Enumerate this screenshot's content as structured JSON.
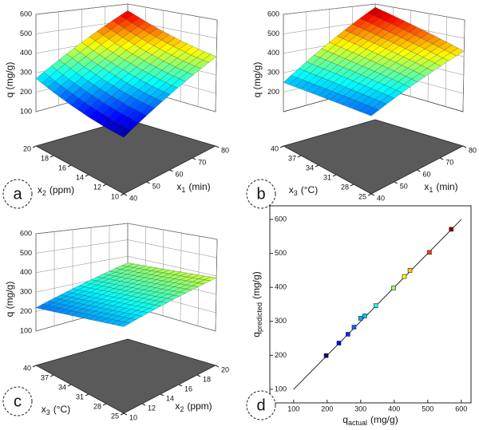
{
  "chart_data": [
    {
      "type": "surface3d",
      "panel_label": "a",
      "colormap": "jet",
      "z_label": "q (mg/g)",
      "x_label": {
        "text": "x",
        "sub": "1",
        "unit": "(min)"
      },
      "y_label": {
        "text": "x",
        "sub": "2",
        "unit": "(ppm)"
      },
      "xlim": [
        40,
        80
      ],
      "xticks": [
        40,
        50,
        60,
        70,
        80
      ],
      "ylim": [
        10,
        20
      ],
      "yticks": [
        10,
        12,
        14,
        16,
        18,
        20
      ],
      "zlim": [
        100,
        600
      ],
      "zticks": [
        100,
        200,
        300,
        400,
        500,
        600
      ],
      "z": [
        [
          110,
          183,
          255,
          328,
          400
        ],
        [
          129,
          202,
          274,
          347,
          419
        ],
        [
          155,
          228,
          300,
          373,
          445
        ],
        [
          187,
          260,
          332,
          405,
          477
        ],
        [
          225,
          298,
          370,
          443,
          515
        ],
        [
          270,
          343,
          415,
          488,
          560
        ]
      ]
    },
    {
      "type": "surface3d",
      "panel_label": "b",
      "colormap": "jet",
      "z_label": "q (mg/g)",
      "x_label": {
        "text": "x",
        "sub": "1",
        "unit": "(min)"
      },
      "y_label": {
        "text": "x",
        "sub": "3",
        "unit": "(°C)"
      },
      "xlim": [
        40,
        80
      ],
      "xticks": [
        40,
        50,
        60,
        70,
        80
      ],
      "ylim": [
        25,
        40
      ],
      "yticks": [
        25,
        28,
        31,
        34,
        37,
        40
      ],
      "zlim": [
        100,
        600
      ],
      "zticks": [
        200,
        300,
        400,
        500,
        600
      ],
      "z": [
        [
          210,
          265,
          320,
          375,
          430
        ],
        [
          218,
          279,
          339,
          400,
          460
        ],
        [
          226,
          292,
          358,
          424,
          490
        ],
        [
          234,
          306,
          377,
          449,
          520
        ],
        [
          242,
          319,
          396,
          473,
          550
        ],
        [
          250,
          333,
          415,
          498,
          580
        ]
      ]
    },
    {
      "type": "surface3d",
      "panel_label": "c",
      "colormap": "jet",
      "z_label": "q (mg/g)",
      "x_label": {
        "text": "x",
        "sub": "2",
        "unit": "(ppm)"
      },
      "y_label": {
        "text": "x",
        "sub": "3",
        "unit": "(°C)"
      },
      "xlim": [
        10,
        20
      ],
      "xticks": [
        10,
        12,
        14,
        16,
        18,
        20
      ],
      "ylim": [
        25,
        40
      ],
      "yticks": [
        25,
        28,
        31,
        34,
        37,
        40
      ],
      "zlim": [
        100,
        600
      ],
      "zticks": [
        100,
        200,
        300,
        400,
        500,
        600
      ],
      "z": [
        [
          250,
          278,
          306,
          334,
          362,
          390
        ],
        [
          244,
          272,
          300,
          328,
          356,
          384
        ],
        [
          238,
          266,
          294,
          322,
          350,
          378
        ],
        [
          232,
          260,
          288,
          316,
          344,
          372
        ],
        [
          226,
          254,
          282,
          310,
          338,
          366
        ],
        [
          220,
          248,
          276,
          304,
          332,
          360
        ]
      ]
    },
    {
      "type": "scatter",
      "panel_label": "d",
      "colormap": "jet",
      "x_label": {
        "text": "q",
        "sub": "actual",
        "unit": "(mg/g)"
      },
      "y_label": {
        "text": "q",
        "sub": "predicted",
        "unit": "(mg/g)"
      },
      "xlim": [
        29,
        629
      ],
      "xticks": [
        100,
        200,
        300,
        400,
        500,
        600
      ],
      "ylim": [
        60,
        640
      ],
      "yticks": [
        100,
        200,
        300,
        400,
        500,
        600
      ],
      "x": [
        197,
        235,
        262,
        280,
        300,
        312,
        345,
        398,
        430,
        447,
        505,
        570
      ],
      "y": [
        199,
        236,
        262,
        283,
        309,
        316,
        346,
        398,
        432,
        450,
        503,
        571
      ]
    }
  ]
}
